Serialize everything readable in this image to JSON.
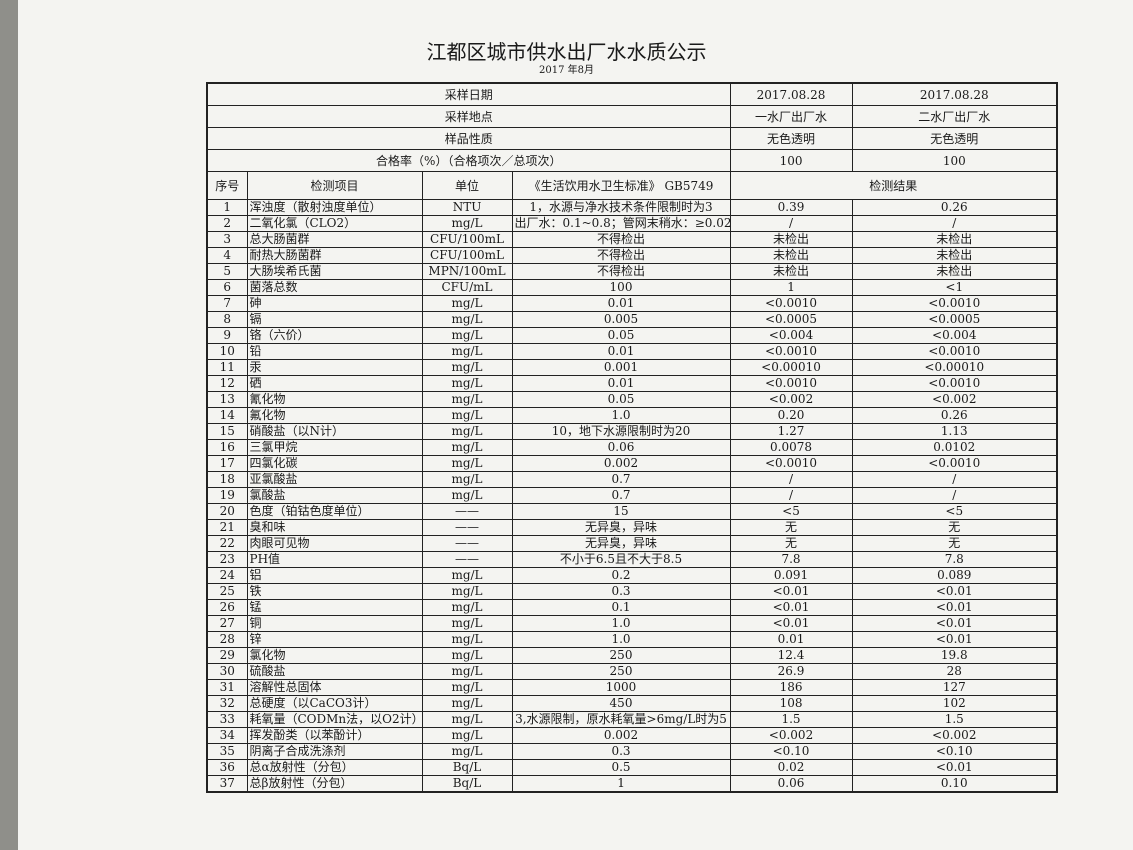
{
  "header": {
    "title": "江都区城市供水出厂水水质公示",
    "subtitle": "2017 年8月"
  },
  "info": [
    {
      "label": "采样日期",
      "values": [
        "2017.08.28",
        "2017.08.28"
      ]
    },
    {
      "label": "采样地点",
      "values": [
        "一水厂出厂水",
        "二水厂出厂水"
      ]
    },
    {
      "label": "样品性质",
      "values": [
        "无色透明",
        "无色透明"
      ]
    },
    {
      "label": "合格率（%）（合格项次／总项次）",
      "values": [
        "100",
        "100"
      ]
    }
  ],
  "table": {
    "columns": [
      "序号",
      "检测项目",
      "单位",
      "《生活饮用水卫生标准》 GB5749",
      "检测结果"
    ],
    "rows": [
      [
        "1",
        "浑浊度（散射浊度单位）",
        "NTU",
        "1，水源与净水技术条件限制时为3",
        "0.39",
        "0.26"
      ],
      [
        "2",
        "二氧化氯（CLO2）",
        "mg/L",
        "出厂水：0.1~0.8；管网末稍水：≥0.02",
        "/",
        "/"
      ],
      [
        "3",
        "总大肠菌群",
        "CFU/100mL",
        "不得检出",
        "未检出",
        "未检出"
      ],
      [
        "4",
        "耐热大肠菌群",
        "CFU/100mL",
        "不得检出",
        "未检出",
        "未检出"
      ],
      [
        "5",
        "大肠埃希氏菌",
        "MPN/100mL",
        "不得检出",
        "未检出",
        "未检出"
      ],
      [
        "6",
        "菌落总数",
        "CFU/mL",
        "100",
        "1",
        "<1"
      ],
      [
        "7",
        "砷",
        "mg/L",
        "0.01",
        "<0.0010",
        "<0.0010"
      ],
      [
        "8",
        "镉",
        "mg/L",
        "0.005",
        "<0.0005",
        "<0.0005"
      ],
      [
        "9",
        "铬（六价）",
        "mg/L",
        "0.05",
        "<0.004",
        "<0.004"
      ],
      [
        "10",
        "铅",
        "mg/L",
        "0.01",
        "<0.0010",
        "<0.0010"
      ],
      [
        "11",
        "汞",
        "mg/L",
        "0.001",
        "<0.00010",
        "<0.00010"
      ],
      [
        "12",
        "硒",
        "mg/L",
        "0.01",
        "<0.0010",
        "<0.0010"
      ],
      [
        "13",
        "氰化物",
        "mg/L",
        "0.05",
        "<0.002",
        "<0.002"
      ],
      [
        "14",
        "氟化物",
        "mg/L",
        "1.0",
        "0.20",
        "0.26"
      ],
      [
        "15",
        "硝酸盐（以N计）",
        "mg/L",
        "10，地下水源限制时为20",
        "1.27",
        "1.13"
      ],
      [
        "16",
        "三氯甲烷",
        "mg/L",
        "0.06",
        "0.0078",
        "0.0102"
      ],
      [
        "17",
        "四氯化碳",
        "mg/L",
        "0.002",
        "<0.0010",
        "<0.0010"
      ],
      [
        "18",
        "亚氯酸盐",
        "mg/L",
        "0.7",
        "/",
        "/"
      ],
      [
        "19",
        "氯酸盐",
        "mg/L",
        "0.7",
        "/",
        "/"
      ],
      [
        "20",
        "色度（铂钴色度单位）",
        "——",
        "15",
        "<5",
        "<5"
      ],
      [
        "21",
        "臭和味",
        "——",
        "无异臭，异味",
        "无",
        "无"
      ],
      [
        "22",
        "肉眼可见物",
        "——",
        "无异臭，异味",
        "无",
        "无"
      ],
      [
        "23",
        "PH值",
        "——",
        "不小于6.5且不大于8.5",
        "7.8",
        "7.8"
      ],
      [
        "24",
        "铝",
        "mg/L",
        "0.2",
        "0.091",
        "0.089"
      ],
      [
        "25",
        "铁",
        "mg/L",
        "0.3",
        "<0.01",
        "<0.01"
      ],
      [
        "26",
        "锰",
        "mg/L",
        "0.1",
        "<0.01",
        "<0.01"
      ],
      [
        "27",
        "铜",
        "mg/L",
        "1.0",
        "<0.01",
        "<0.01"
      ],
      [
        "28",
        "锌",
        "mg/L",
        "1.0",
        "0.01",
        "<0.01"
      ],
      [
        "29",
        "氯化物",
        "mg/L",
        "250",
        "12.4",
        "19.8"
      ],
      [
        "30",
        "硫酸盐",
        "mg/L",
        "250",
        "26.9",
        "28"
      ],
      [
        "31",
        "溶解性总固体",
        "mg/L",
        "1000",
        "186",
        "127"
      ],
      [
        "32",
        "总硬度（以CaCO3计）",
        "mg/L",
        "450",
        "108",
        "102"
      ],
      [
        "33",
        "耗氧量（CODMn法，以O2计）",
        "mg/L",
        "3,水源限制，原水耗氧量>6mg/L时为5",
        "1.5",
        "1.5"
      ],
      [
        "34",
        "挥发酚类（以苯酚计）",
        "mg/L",
        "0.002",
        "<0.002",
        "<0.002"
      ],
      [
        "35",
        "阴离子合成洗涤剂",
        "mg/L",
        "0.3",
        "<0.10",
        "<0.10"
      ],
      [
        "36",
        "总α放射性（分包）",
        "Bq/L",
        "0.5",
        "0.02",
        "<0.01"
      ],
      [
        "37",
        "总β放射性（分包）",
        "Bq/L",
        "1",
        "0.06",
        "0.10"
      ]
    ]
  }
}
